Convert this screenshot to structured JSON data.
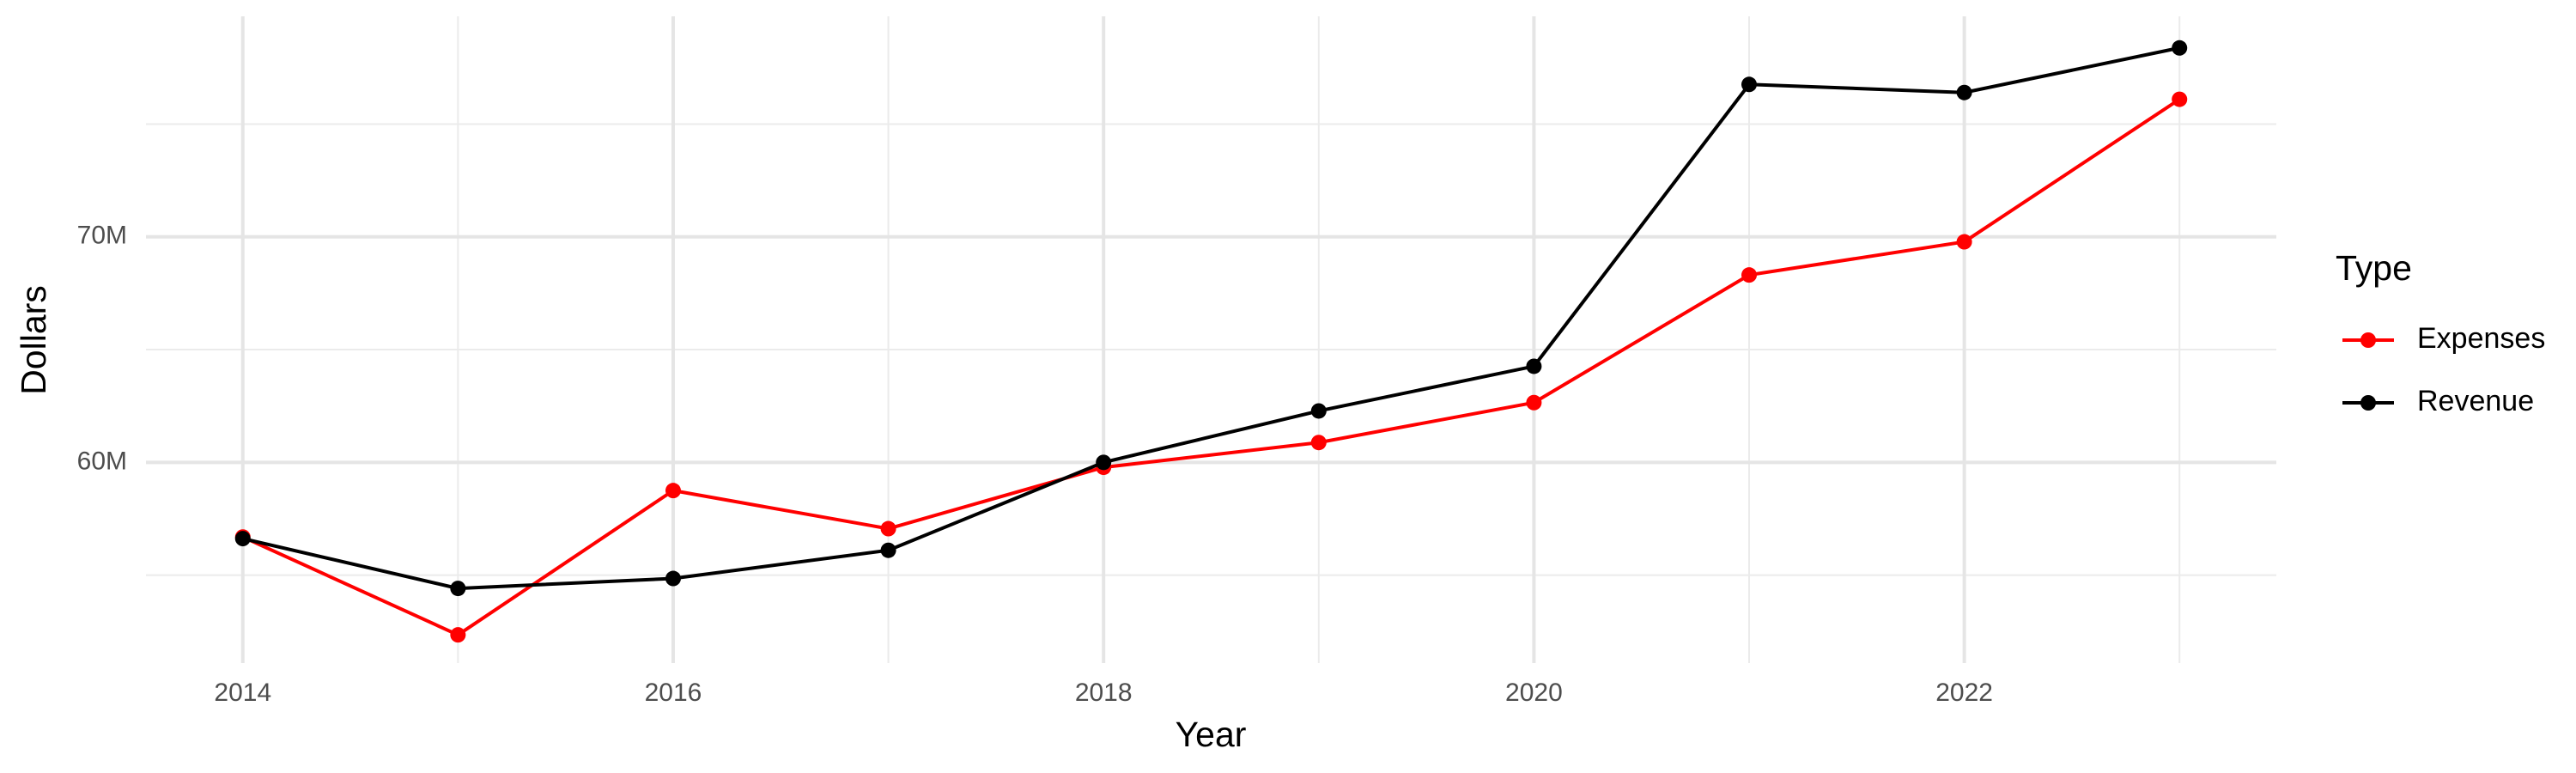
{
  "chart_data": {
    "type": "line",
    "x_label": "Year",
    "y_label": "Dollars",
    "legend_title": "Type",
    "x": [
      2014,
      2015,
      2016,
      2017,
      2018,
      2019,
      2020,
      2021,
      2022,
      2023
    ],
    "series": [
      {
        "name": "Expenses",
        "color": "#ff0000",
        "values": [
          56690000,
          52350000,
          58750000,
          57060000,
          59780000,
          60880000,
          62650000,
          68310000,
          69780000,
          76100000
        ]
      },
      {
        "name": "Revenue",
        "color": "#000000",
        "values": [
          56620000,
          54410000,
          54850000,
          56100000,
          60000000,
          62280000,
          64260000,
          76760000,
          76400000,
          78380000
        ]
      }
    ],
    "xlim": [
      2013.55,
      2023.45
    ],
    "ylim": [
      51100000,
      79780000
    ],
    "xticks": [
      2014,
      2016,
      2018,
      2020,
      2022
    ],
    "yticks": [
      {
        "value": 60000000,
        "label": "60M"
      },
      {
        "value": 70000000,
        "label": "70M"
      }
    ],
    "grid": true,
    "legend": "right"
  }
}
